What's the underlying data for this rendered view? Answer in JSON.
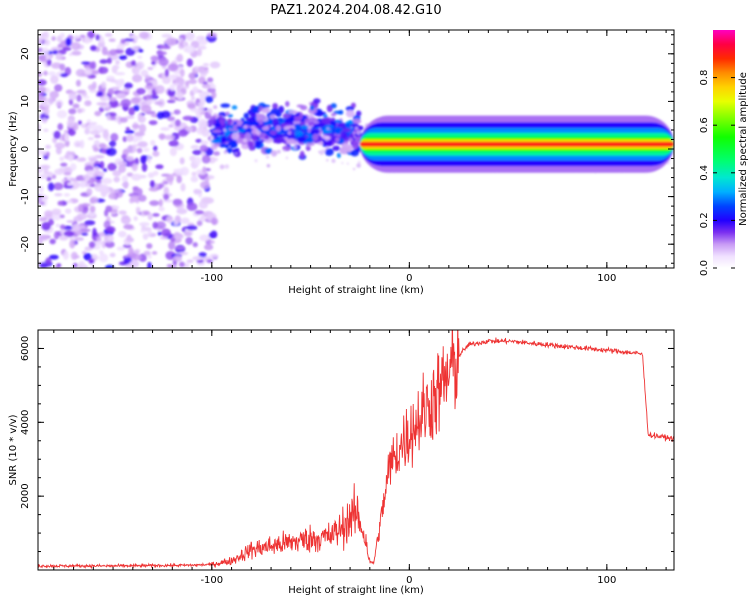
{
  "title": "PAZ1.2024.204.08.42.G10",
  "chart_data": [
    {
      "type": "heatmap",
      "xlabel": "Height of straight line (km)",
      "ylabel": "Frequency (Hz)",
      "xlim": [
        -188,
        134
      ],
      "ylim": [
        -25,
        25
      ],
      "x_ticks": [
        -100,
        0,
        100
      ],
      "y_ticks": [
        -20,
        -10,
        0,
        10,
        20
      ],
      "colorbar": {
        "label": "Normalized spectral amplitude",
        "range": [
          0,
          1
        ],
        "ticks": [
          0.0,
          0.2,
          0.4,
          0.6,
          0.8
        ],
        "colormap": "gist_ncar"
      },
      "features": [
        {
          "region": "noise",
          "x_range": [
            -188,
            -98
          ],
          "freq_range": [
            -25,
            24
          ],
          "amplitude": 0.12
        },
        {
          "region": "transition",
          "x_range": [
            -98,
            -25
          ],
          "freq_range": [
            -8,
            10
          ],
          "amplitude": 0.3
        },
        {
          "region": "tone",
          "x_range": [
            -25,
            134
          ],
          "freq": 1.0,
          "amplitude": 0.95
        }
      ]
    },
    {
      "type": "line",
      "xlabel": "Height of straight line (km)",
      "ylabel": "SNR (10 * v/v)",
      "xlim": [
        -188,
        134
      ],
      "ylim": [
        0,
        6500
      ],
      "x_ticks": [
        -100,
        0,
        100
      ],
      "y_ticks": [
        2000,
        4000,
        6000
      ],
      "color": "#ee3333",
      "x": [
        -188,
        -150,
        -110,
        -100,
        -90,
        -80,
        -70,
        -60,
        -50,
        -40,
        -35,
        -30,
        -26,
        -22,
        -20,
        -18,
        -14,
        -10,
        -5,
        0,
        5,
        10,
        15,
        20,
        25,
        30,
        40,
        50,
        60,
        70,
        80,
        90,
        100,
        110,
        118,
        121,
        123,
        134
      ],
      "y": [
        110,
        110,
        130,
        150,
        250,
        550,
        650,
        750,
        850,
        900,
        1100,
        1400,
        1500,
        800,
        200,
        200,
        1500,
        2800,
        3300,
        3700,
        4100,
        4500,
        4800,
        5300,
        5800,
        6100,
        6200,
        6200,
        6150,
        6100,
        6050,
        6000,
        5950,
        5900,
        5850,
        3650,
        3650,
        3550
      ]
    }
  ]
}
